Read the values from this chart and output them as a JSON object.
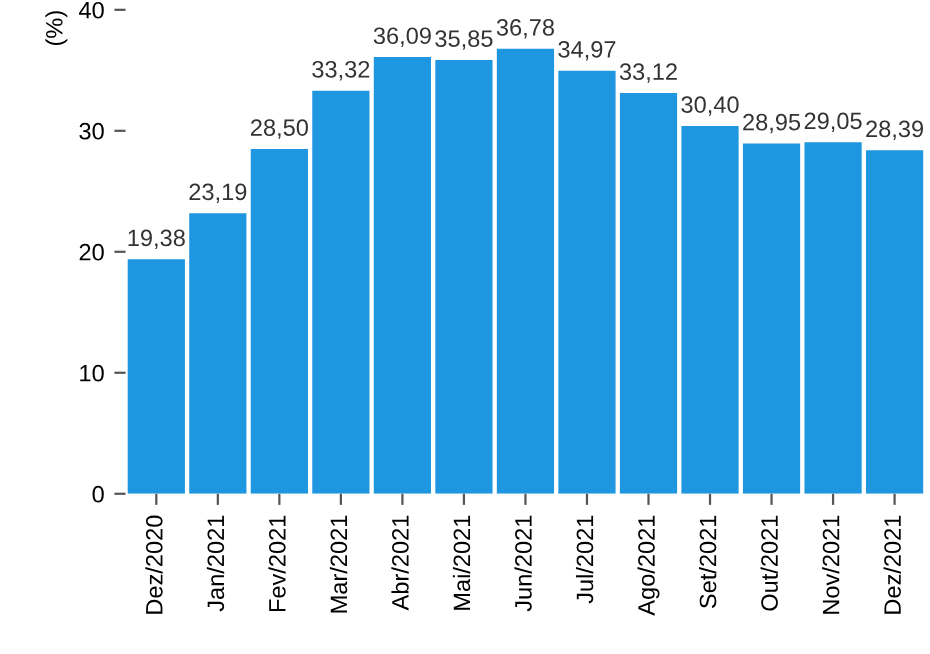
{
  "chart_data": {
    "type": "bar",
    "ylabel": "(%)",
    "categories": [
      "Dez/2020",
      "Jan/2021",
      "Fev/2021",
      "Mar/2021",
      "Abr/2021",
      "Mai/2021",
      "Jun/2021",
      "Jul/2021",
      "Ago/2021",
      "Set/2021",
      "Out/2021",
      "Nov/2021",
      "Dez/2021"
    ],
    "values": [
      19.38,
      23.19,
      28.5,
      33.32,
      36.09,
      35.85,
      36.78,
      34.97,
      33.12,
      30.4,
      28.95,
      29.05,
      28.39
    ],
    "value_labels": [
      "19,38",
      "23,19",
      "28,50",
      "33,32",
      "36,09",
      "35,85",
      "36,78",
      "34,97",
      "33,12",
      "30,40",
      "28,95",
      "29,05",
      "28,39"
    ],
    "color": "#1f96e0",
    "ylim": [
      0,
      40
    ],
    "yticks": [
      0,
      10,
      20,
      30,
      40
    ],
    "grid": false
  }
}
